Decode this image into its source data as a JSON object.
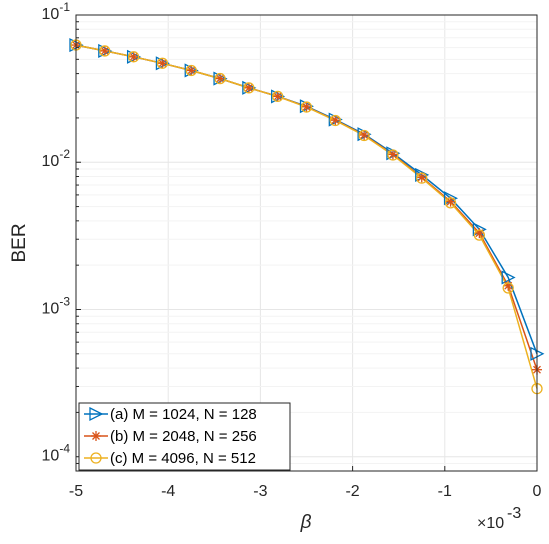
{
  "chart_data": {
    "type": "line",
    "title": "",
    "xlabel": "β",
    "ylabel": "BER",
    "xscale_note": "×10",
    "xscale_exp": "-3",
    "xlim": [
      -5,
      0
    ],
    "ylim": [
      8e-05,
      0.1
    ],
    "yscale": "log",
    "grid": true,
    "legend_location": "bottom-left",
    "x_ticks": [
      -5,
      -4,
      -3,
      -2,
      -1,
      0
    ],
    "x_tick_labels": [
      "-5",
      "-4",
      "-3",
      "-2",
      "-1",
      "0"
    ],
    "y_ticks": [
      0.0001,
      0.001,
      0.01,
      0.1
    ],
    "y_tick_labels": [
      {
        "base": "10",
        "exp": "-4"
      },
      {
        "base": "10",
        "exp": "-3"
      },
      {
        "base": "10",
        "exp": "-2"
      },
      {
        "base": "10",
        "exp": "-1"
      }
    ],
    "x": [
      -5,
      -4.6875,
      -4.375,
      -4.0625,
      -3.75,
      -3.4375,
      -3.125,
      -2.8125,
      -2.5,
      -2.1875,
      -1.875,
      -1.5625,
      -1.25,
      -0.9375,
      -0.625,
      -0.3125,
      0
    ],
    "series": [
      {
        "name": "(a) M = 1024, N = 128",
        "color": "#0072BD",
        "marker": "triangle-right",
        "values": [
          0.0625,
          0.057,
          0.052,
          0.047,
          0.042,
          0.037,
          0.032,
          0.028,
          0.024,
          0.0195,
          0.0155,
          0.0115,
          0.0082,
          0.0057,
          0.0035,
          0.00165,
          0.0005
        ]
      },
      {
        "name": "(b) M = 2048, N = 256",
        "color": "#D95319",
        "marker": "asterisk",
        "values": [
          0.0625,
          0.057,
          0.052,
          0.047,
          0.042,
          0.037,
          0.032,
          0.028,
          0.0238,
          0.0193,
          0.0153,
          0.0113,
          0.0079,
          0.0054,
          0.0033,
          0.00145,
          0.00039
        ]
      },
      {
        "name": "(c) M = 4096, N = 512",
        "color": "#EDB120",
        "marker": "circle",
        "values": [
          0.0625,
          0.057,
          0.052,
          0.047,
          0.042,
          0.037,
          0.032,
          0.028,
          0.0237,
          0.0192,
          0.0152,
          0.0112,
          0.0078,
          0.0053,
          0.0032,
          0.0014,
          0.00029
        ]
      }
    ]
  }
}
